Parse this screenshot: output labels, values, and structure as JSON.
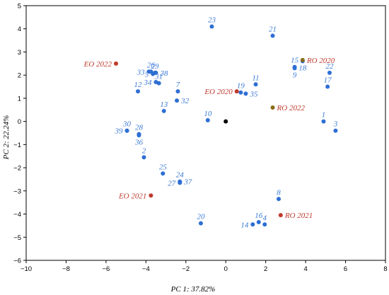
{
  "chart_data": {
    "type": "scatter",
    "xlabel": "PC 1: 37.82%",
    "ylabel": "PC 2: 22.24%",
    "xlim": [
      -10,
      8
    ],
    "ylim": [
      -6,
      5
    ],
    "xticks": [
      -10,
      -8,
      -6,
      -4,
      -2,
      0,
      2,
      4,
      6,
      8
    ],
    "yticks": [
      -6,
      -5,
      -4,
      -3,
      -2,
      -1,
      0,
      1,
      2,
      3,
      4,
      5
    ],
    "colors": {
      "sample": "#2e6fd4",
      "sample_label": "#3a7ad6",
      "extract": "#c0392b",
      "extract_label": "#c0392b",
      "extract_dot_2": "#8b6a14",
      "origin": "#000000"
    },
    "origin_point": {
      "x": 0,
      "y": 0
    },
    "points": [
      {
        "label": "2",
        "x": -4.1,
        "y": -1.55,
        "group": "sample",
        "lpos": "above"
      },
      {
        "label": "3",
        "x": 5.5,
        "y": -0.4,
        "group": "sample",
        "lpos": "above"
      },
      {
        "label": "4",
        "x": 1.95,
        "y": -4.45,
        "group": "sample",
        "lpos": "above"
      },
      {
        "label": "5",
        "x": -3.65,
        "y": 2.05,
        "group": "sample",
        "lpos": "left"
      },
      {
        "label": "7",
        "x": -2.4,
        "y": 1.3,
        "group": "sample",
        "lpos": "above"
      },
      {
        "label": "8",
        "x": 2.65,
        "y": -3.35,
        "group": "sample",
        "lpos": "above"
      },
      {
        "label": "9",
        "x": 3.45,
        "y": 2.3,
        "group": "sample",
        "lpos": "below"
      },
      {
        "label": "10",
        "x": -0.9,
        "y": 0.05,
        "group": "sample",
        "lpos": "above"
      },
      {
        "label": "11",
        "x": 1.5,
        "y": 1.6,
        "group": "sample",
        "lpos": "above"
      },
      {
        "label": "12",
        "x": -4.4,
        "y": 1.3,
        "group": "sample",
        "lpos": "above"
      },
      {
        "label": "13",
        "x": -3.1,
        "y": 0.45,
        "group": "sample",
        "lpos": "above"
      },
      {
        "label": "14",
        "x": 1.35,
        "y": -4.45,
        "group": "sample",
        "lpos": "left"
      },
      {
        "label": "15",
        "x": 3.45,
        "y": 2.35,
        "group": "sample",
        "lpos": "above"
      },
      {
        "label": "16",
        "x": 1.65,
        "y": -4.35,
        "group": "sample",
        "lpos": "above"
      },
      {
        "label": "17",
        "x": 5.1,
        "y": 1.5,
        "group": "sample",
        "lpos": "above"
      },
      {
        "label": "18",
        "x": 3.85,
        "y": 2.6,
        "group": "sample",
        "lpos": "below"
      },
      {
        "label": "19",
        "x": 0.75,
        "y": 1.25,
        "group": "sample",
        "lpos": "above"
      },
      {
        "label": "20",
        "x": -1.25,
        "y": -4.4,
        "group": "sample",
        "lpos": "above"
      },
      {
        "label": "21",
        "x": 2.35,
        "y": 3.7,
        "group": "sample",
        "lpos": "above"
      },
      {
        "label": "22",
        "x": 5.2,
        "y": 2.1,
        "group": "sample",
        "lpos": "above"
      },
      {
        "label": "23",
        "x": -0.7,
        "y": 4.1,
        "group": "sample",
        "lpos": "above"
      },
      {
        "label": "24",
        "x": -2.3,
        "y": -2.6,
        "group": "sample",
        "lpos": "above"
      },
      {
        "label": "25",
        "x": -3.15,
        "y": -2.25,
        "group": "sample",
        "lpos": "above"
      },
      {
        "label": "26",
        "x": -3.75,
        "y": 2.15,
        "group": "sample",
        "lpos": "above"
      },
      {
        "label": "27",
        "x": -2.3,
        "y": -2.65,
        "group": "sample",
        "lpos": "left"
      },
      {
        "label": "28",
        "x": -4.35,
        "y": -0.55,
        "group": "sample",
        "lpos": "above"
      },
      {
        "label": "29",
        "x": -3.55,
        "y": 2.1,
        "group": "sample",
        "lpos": "above"
      },
      {
        "label": "30",
        "x": -4.95,
        "y": -0.4,
        "group": "sample",
        "lpos": "above"
      },
      {
        "label": "31",
        "x": -3.35,
        "y": 1.65,
        "group": "sample",
        "lpos": "above"
      },
      {
        "label": "32",
        "x": -2.45,
        "y": 0.9,
        "group": "sample",
        "lpos": "right"
      },
      {
        "label": "33",
        "x": -3.85,
        "y": 2.15,
        "group": "sample",
        "lpos": "left"
      },
      {
        "label": "34",
        "x": -3.5,
        "y": 1.7,
        "group": "sample",
        "lpos": "left"
      },
      {
        "label": "35",
        "x": 1.0,
        "y": 1.2,
        "group": "sample",
        "lpos": "right"
      },
      {
        "label": "36",
        "x": -4.35,
        "y": -0.6,
        "group": "sample",
        "lpos": "below"
      },
      {
        "label": "37",
        "x": -2.3,
        "y": -2.6,
        "group": "sample",
        "lpos": "right"
      },
      {
        "label": "38",
        "x": -3.5,
        "y": 2.1,
        "group": "sample",
        "lpos": "right"
      },
      {
        "label": "39",
        "x": -4.95,
        "y": -0.4,
        "group": "sample",
        "lpos": "left"
      },
      {
        "label": "1",
        "x": 4.9,
        "y": 0.0,
        "group": "sample",
        "lpos": "above"
      },
      {
        "label": "EO 2022",
        "x": -5.5,
        "y": 2.5,
        "group": "extract",
        "lpos": "left"
      },
      {
        "label": "EO 2020",
        "x": 0.55,
        "y": 1.3,
        "group": "extract",
        "lpos": "left"
      },
      {
        "label": "EO 2021",
        "x": -3.75,
        "y": -3.2,
        "group": "extract",
        "lpos": "left"
      },
      {
        "label": "RO 2020",
        "x": 3.85,
        "y": 2.65,
        "group": "extract2",
        "lpos": "right"
      },
      {
        "label": "RO 2022",
        "x": 2.35,
        "y": 0.6,
        "group": "extract2",
        "lpos": "right"
      },
      {
        "label": "RO 2021",
        "x": 2.75,
        "y": -4.05,
        "group": "extract",
        "lpos": "right"
      }
    ]
  }
}
